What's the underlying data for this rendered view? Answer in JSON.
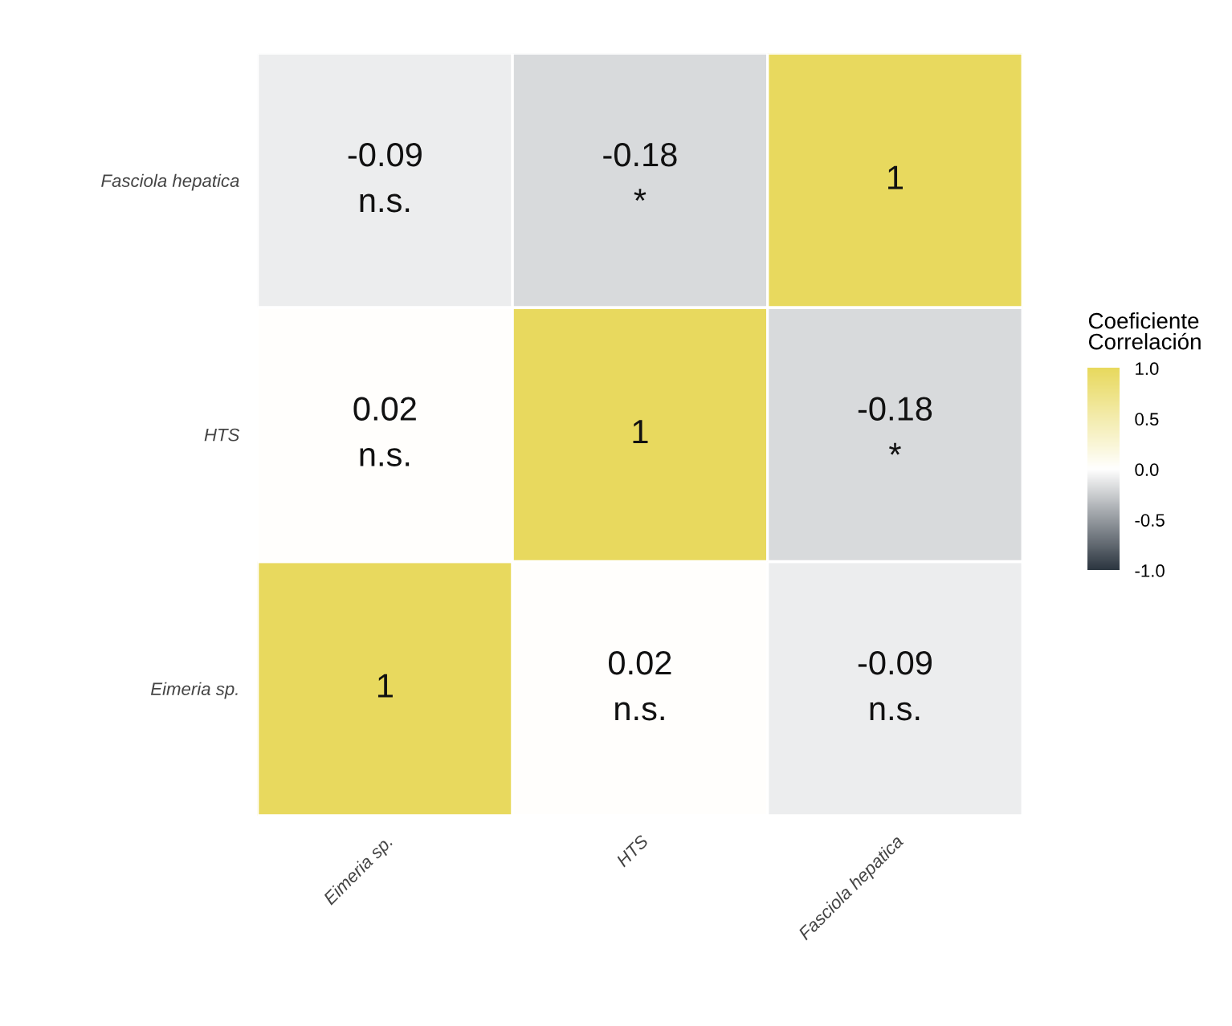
{
  "chart_data": {
    "type": "heatmap",
    "categories": [
      "Eimeria sp.",
      "HTS",
      "Fasciola hepatica"
    ],
    "y_categories": [
      "Fasciola hepatica",
      "HTS",
      "Eimeria sp."
    ],
    "cells": [
      [
        -0.09,
        -0.18,
        1
      ],
      [
        0.02,
        1,
        -0.18
      ],
      [
        1,
        0.02,
        -0.09
      ]
    ],
    "cell_labels": [
      [
        "-0.09\nn.s.",
        "-0.18\n*",
        "1"
      ],
      [
        "0.02\nn.s.",
        "1",
        "-0.18\n*"
      ],
      [
        "1",
        "0.02\nn.s.",
        "-0.09\nn.s."
      ]
    ],
    "clabel": "Coeficiente\nCorrelación",
    "clim": [
      -1,
      1
    ],
    "cticks": [
      {
        "value": 1,
        "label": "1.0"
      },
      {
        "value": 0.5,
        "label": "0.5"
      },
      {
        "value": 0,
        "label": "0.0"
      },
      {
        "value": -0.5,
        "label": "-0.5"
      },
      {
        "value": -1,
        "label": "-1.0"
      }
    ]
  }
}
